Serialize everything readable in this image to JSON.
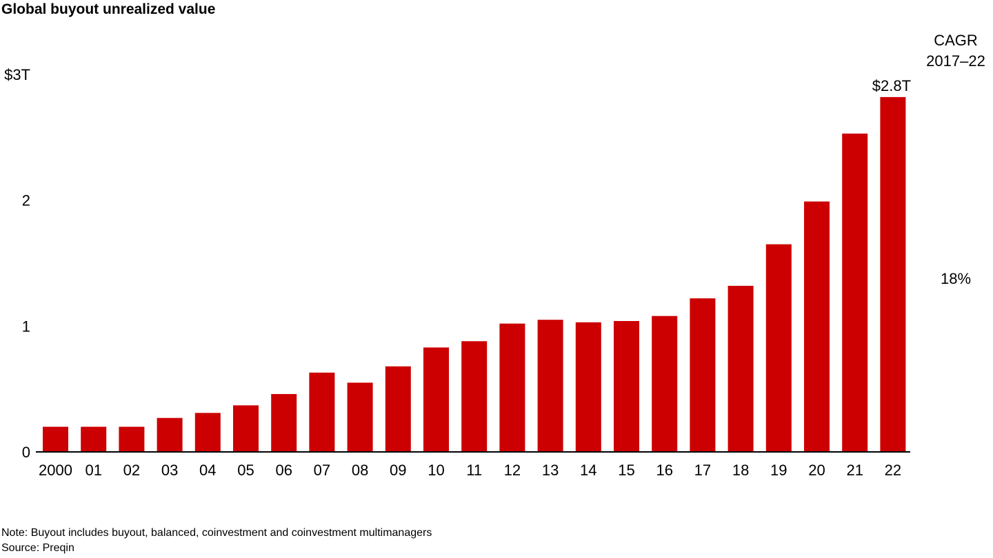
{
  "title": "Global buyout unrealized value",
  "cagr": {
    "line1": "CAGR",
    "line2": "2017–22",
    "value": "18%"
  },
  "note": "Note: Buyout includes buyout, balanced, coinvestment and coinvestment multimanagers",
  "source": "Source: Preqin",
  "colors": {
    "bar": "#cc0000",
    "axis": "#000000"
  },
  "chart_data": {
    "type": "bar",
    "title": "Global buyout unrealized value",
    "xlabel": "",
    "ylabel": "",
    "ylim": [
      0,
      3
    ],
    "yticks": [
      {
        "value": 0,
        "label": "0"
      },
      {
        "value": 1,
        "label": "1"
      },
      {
        "value": 2,
        "label": "2"
      },
      {
        "value": 3,
        "label": "$3T"
      }
    ],
    "grid": false,
    "categories": [
      "2000",
      "01",
      "02",
      "03",
      "04",
      "05",
      "06",
      "07",
      "08",
      "09",
      "10",
      "11",
      "12",
      "13",
      "14",
      "15",
      "16",
      "17",
      "18",
      "19",
      "20",
      "21",
      "22"
    ],
    "values": [
      0.2,
      0.2,
      0.2,
      0.27,
      0.31,
      0.37,
      0.46,
      0.63,
      0.55,
      0.68,
      0.83,
      0.88,
      1.02,
      1.05,
      1.03,
      1.04,
      1.08,
      1.22,
      1.32,
      1.65,
      1.99,
      2.53,
      2.82
    ],
    "data_labels": [
      {
        "index": 22,
        "label": "$2.8T"
      }
    ]
  }
}
